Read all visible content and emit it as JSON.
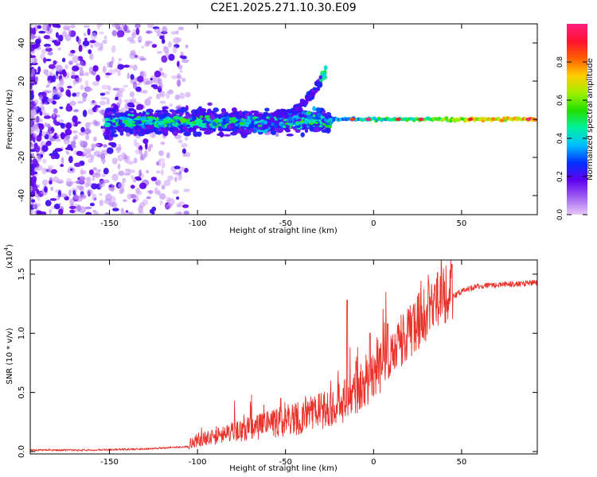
{
  "figure_title": "C2E1.2025.271.10.30.E09",
  "chart_data": [
    {
      "type": "heatmap",
      "title": "C2E1.2025.271.10.30.E09",
      "xlabel": "Height of straight line (km)",
      "ylabel": "Frequency (Hz)",
      "xlim": [
        -195,
        93
      ],
      "ylim": [
        -50,
        50
      ],
      "xticks": [
        -150,
        -100,
        -50,
        0,
        50
      ],
      "yticks": [
        -40,
        -20,
        0,
        20,
        40
      ],
      "colorbar": {
        "label": "Normalized spectral amplitude",
        "range": [
          0.0,
          1.0
        ],
        "ticks": [
          0.0,
          0.2,
          0.4,
          0.6,
          0.8
        ],
        "colors": [
          "#e8c8f8",
          "#a060f0",
          "#6000f0",
          "#0030ff",
          "#00c0ff",
          "#00f0a0",
          "#20e000",
          "#a0f000",
          "#ffd000",
          "#ff6000",
          "#ff1030",
          "#ff2080"
        ]
      },
      "features": [
        {
          "name": "main-band",
          "x_range": [
            -150,
            92
          ],
          "center_freq": 0,
          "amplitude": "low-to-high"
        },
        {
          "name": "upper-branch",
          "x_range": [
            -55,
            -27
          ],
          "freq_range": [
            0,
            27
          ]
        },
        {
          "name": "lower-branch",
          "x_range": [
            -75,
            -30
          ],
          "freq_range": [
            -8,
            0
          ]
        }
      ]
    },
    {
      "type": "line",
      "xlabel": "Height of straight line (km)",
      "ylabel": "SNR (10 * v/v)",
      "multiplier_label": "(x10",
      "multiplier_exp": "4",
      "xlim": [
        -195,
        93
      ],
      "ylim": [
        -0.02,
        1.62
      ],
      "xticks": [
        -150,
        -100,
        -50,
        0,
        50
      ],
      "yticks": [
        "0.0",
        "0.5",
        "1.0",
        "1.5"
      ],
      "line_color": "#e8322a",
      "series": [
        {
          "name": "SNR",
          "trend_x": [
            -195,
            -160,
            -130,
            -105,
            -100,
            -80,
            -60,
            -40,
            -25,
            -10,
            0,
            10,
            20,
            30,
            40,
            50,
            60,
            70,
            80,
            93
          ],
          "trend_y": [
            0.01,
            0.01,
            0.02,
            0.04,
            0.08,
            0.14,
            0.19,
            0.25,
            0.32,
            0.42,
            0.58,
            0.75,
            0.95,
            1.1,
            1.25,
            1.35,
            1.39,
            1.4,
            1.41,
            1.42
          ],
          "spikes": [
            {
              "x": -15,
              "y": 1.28
            },
            {
              "x": -2,
              "y": 1.0
            },
            {
              "x": 8,
              "y": 1.08
            },
            {
              "x": 22,
              "y": 1.15
            }
          ]
        }
      ]
    }
  ]
}
